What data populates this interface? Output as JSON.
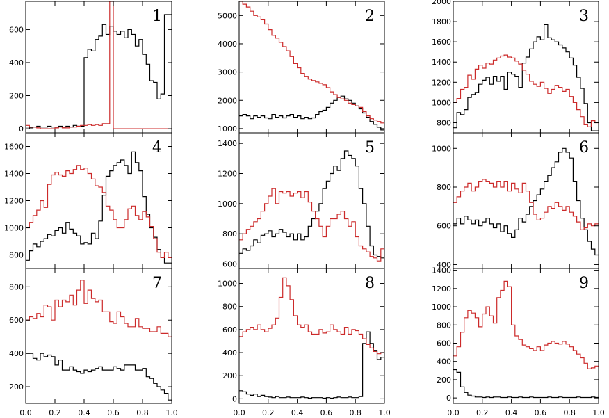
{
  "colors": {
    "series_a": "#000000",
    "series_b": "#cc2a2a"
  },
  "chart_data": {
    "type": "line",
    "layout": "3x3 grid of step histograms, shared x axis per column",
    "xlim": [
      0.0,
      1.0
    ],
    "x_tick_labels": [
      "0.0",
      "0.2",
      "0.4",
      "0.6",
      "0.8",
      "1.0"
    ],
    "x_ticks": [
      0.0,
      0.2,
      0.4,
      0.6,
      0.8,
      1.0
    ],
    "bin_edges": [
      0.0,
      0.025,
      0.05,
      0.075,
      0.1,
      0.125,
      0.15,
      0.175,
      0.2,
      0.225,
      0.25,
      0.275,
      0.3,
      0.325,
      0.35,
      0.375,
      0.4,
      0.425,
      0.45,
      0.475,
      0.5,
      0.525,
      0.55,
      0.575,
      0.6,
      0.625,
      0.65,
      0.675,
      0.7,
      0.725,
      0.75,
      0.775,
      0.8,
      0.825,
      0.85,
      0.875,
      0.9,
      0.925,
      0.95,
      0.975,
      1.0
    ],
    "panels": [
      {
        "label": "1",
        "ylim": [
          -25,
          770
        ],
        "yticks": [
          0,
          200,
          400,
          600
        ],
        "y_tick_labels": [
          "0",
          "200",
          "400",
          "600"
        ],
        "series": [
          {
            "color": "#000000",
            "values": [
              10,
              5,
              10,
              15,
              10,
              10,
              15,
              10,
              10,
              15,
              10,
              15,
              10,
              20,
              15,
              15,
              430,
              480,
              470,
              540,
              560,
              630,
              570,
              620,
              590,
              570,
              590,
              550,
              600,
              570,
              500,
              540,
              450,
              390,
              290,
              280,
              180,
              210,
              690,
              690
            ]
          },
          {
            "color": "#cc2a2a",
            "values": [
              20,
              10,
              10,
              5,
              0,
              0,
              0,
              0,
              5,
              10,
              5,
              5,
              10,
              10,
              15,
              20,
              20,
              25,
              20,
              25,
              20,
              30,
              30,
              770,
              0,
              0,
              0,
              0,
              0,
              0,
              0,
              0,
              0,
              0,
              0,
              0,
              0,
              0,
              0,
              0
            ]
          }
        ]
      },
      {
        "label": "4",
        "ylim": [
          700,
          1700
        ],
        "yticks": [
          800,
          1000,
          1200,
          1400,
          1600
        ],
        "y_tick_labels": [
          "800",
          "1000",
          "1200",
          "1400",
          "1600"
        ],
        "series": [
          {
            "color": "#000000",
            "values": [
              760,
              830,
              880,
              860,
              900,
              920,
              950,
              940,
              980,
              1000,
              960,
              1040,
              990,
              960,
              940,
              880,
              890,
              880,
              960,
              920,
              1050,
              1240,
              1380,
              1420,
              1460,
              1480,
              1500,
              1460,
              1400,
              1560,
              1480,
              1420,
              1230,
              1100,
              1000,
              930,
              840,
              780,
              740,
              740
            ]
          },
          {
            "color": "#cc2a2a",
            "values": [
              1000,
              1040,
              1090,
              1130,
              1200,
              1150,
              1320,
              1390,
              1410,
              1390,
              1380,
              1420,
              1400,
              1430,
              1460,
              1430,
              1440,
              1400,
              1360,
              1310,
              1300,
              1260,
              1160,
              1130,
              1060,
              1000,
              1000,
              1060,
              1140,
              1160,
              1090,
              1060,
              1120,
              1080,
              1010,
              920,
              820,
              780,
              820,
              780
            ]
          }
        ]
      },
      {
        "label": "7",
        "ylim": [
          100,
          910
        ],
        "yticks": [
          200,
          400,
          600,
          800
        ],
        "y_tick_labels": [
          "200",
          "400",
          "600",
          "800"
        ],
        "series": [
          {
            "color": "#000000",
            "values": [
              400,
              400,
              370,
              360,
              400,
              380,
              390,
              380,
              330,
              360,
              300,
              300,
              320,
              300,
              290,
              280,
              300,
              290,
              300,
              310,
              320,
              300,
              300,
              300,
              320,
              310,
              300,
              330,
              330,
              330,
              300,
              300,
              310,
              260,
              250,
              220,
              200,
              180,
              160,
              120
            ]
          },
          {
            "color": "#cc2a2a",
            "values": [
              600,
              620,
              610,
              640,
              620,
              690,
              680,
              600,
              720,
              680,
              720,
              710,
              750,
              690,
              780,
              840,
              700,
              780,
              730,
              710,
              720,
              650,
              650,
              590,
              580,
              650,
              620,
              580,
              560,
              560,
              610,
              560,
              550,
              550,
              530,
              530,
              560,
              520,
              520,
              500
            ]
          }
        ]
      },
      {
        "label": "2",
        "ylim": [
          850,
          5500
        ],
        "yticks": [
          1000,
          2000,
          3000,
          4000,
          5000
        ],
        "y_tick_labels": [
          "1000",
          "2000",
          "3000",
          "4000",
          "5000"
        ],
        "series": [
          {
            "color": "#000000",
            "values": [
              1450,
              1500,
              1450,
              1350,
              1450,
              1400,
              1450,
              1380,
              1350,
              1500,
              1400,
              1450,
              1380,
              1450,
              1500,
              1400,
              1450,
              1350,
              1400,
              1350,
              1380,
              1500,
              1600,
              1650,
              1750,
              1900,
              2000,
              2100,
              2150,
              2050,
              2000,
              1900,
              1800,
              1700,
              1550,
              1400,
              1250,
              1150,
              1050,
              950
            ]
          },
          {
            "color": "#cc2a2a",
            "values": [
              5500,
              5400,
              5300,
              5150,
              5000,
              4950,
              4850,
              4700,
              4500,
              4300,
              4200,
              4050,
              3900,
              3750,
              3550,
              3300,
              3150,
              2950,
              2850,
              2750,
              2700,
              2650,
              2600,
              2550,
              2450,
              2300,
              2200,
              2100,
              2050,
              2000,
              1900,
              1850,
              1800,
              1750,
              1600,
              1450,
              1350,
              1300,
              1250,
              1200
            ]
          }
        ]
      },
      {
        "label": "5",
        "ylim": [
          570,
          1470
        ],
        "yticks": [
          600,
          800,
          1000,
          1200,
          1400
        ],
        "y_tick_labels": [
          "600",
          "800",
          "1000",
          "1200",
          "1400"
        ],
        "series": [
          {
            "color": "#000000",
            "values": [
              670,
              700,
              690,
              720,
              760,
              740,
              790,
              800,
              820,
              780,
              800,
              830,
              810,
              780,
              800,
              760,
              800,
              760,
              780,
              850,
              900,
              950,
              1000,
              1100,
              1150,
              1200,
              1250,
              1220,
              1300,
              1350,
              1320,
              1300,
              1250,
              1100,
              1000,
              850,
              720,
              660,
              650,
              640
            ]
          },
          {
            "color": "#cc2a2a",
            "values": [
              760,
              800,
              830,
              850,
              880,
              900,
              950,
              1000,
              1050,
              1100,
              1000,
              1080,
              1070,
              1080,
              1050,
              1070,
              1080,
              1040,
              1080,
              1010,
              950,
              900,
              850,
              780,
              850,
              900,
              900,
              930,
              950,
              900,
              850,
              880,
              780,
              720,
              700,
              680,
              650,
              640,
              620,
              700
            ]
          }
        ]
      },
      {
        "label": "8",
        "ylim": [
          -40,
          1130
        ],
        "yticks": [
          0,
          200,
          400,
          600,
          800,
          1000
        ],
        "y_tick_labels": [
          "0",
          "200",
          "400",
          "600",
          "800",
          "1000"
        ],
        "series": [
          {
            "color": "#000000",
            "values": [
              70,
              60,
              40,
              30,
              40,
              20,
              30,
              20,
              15,
              10,
              20,
              10,
              10,
              15,
              10,
              10,
              10,
              15,
              10,
              5,
              10,
              10,
              10,
              5,
              10,
              5,
              10,
              15,
              10,
              10,
              15,
              10,
              10,
              20,
              480,
              580,
              480,
              420,
              340,
              360
            ]
          },
          {
            "color": "#cc2a2a",
            "values": [
              540,
              580,
              600,
              620,
              600,
              640,
              600,
              580,
              610,
              640,
              700,
              880,
              1050,
              980,
              860,
              720,
              640,
              620,
              640,
              580,
              560,
              560,
              600,
              570,
              580,
              640,
              600,
              580,
              560,
              620,
              560,
              600,
              590,
              560,
              520,
              470,
              440,
              410,
              390,
              400
            ]
          }
        ]
      },
      {
        "label": "3",
        "ylim": [
          700,
          2000
        ],
        "yticks": [
          800,
          1000,
          1200,
          1400,
          1600,
          1800,
          2000
        ],
        "y_tick_labels": [
          "800",
          "1000",
          "1200",
          "1400",
          "1600",
          "1800",
          "2000"
        ],
        "series": [
          {
            "color": "#000000",
            "values": [
              750,
              900,
              880,
              930,
              1050,
              1080,
              1100,
              1180,
              1220,
              1250,
              1180,
              1260,
              1210,
              1260,
              1130,
              1300,
              1280,
              1260,
              1150,
              1390,
              1450,
              1530,
              1600,
              1650,
              1620,
              1770,
              1640,
              1620,
              1600,
              1570,
              1540,
              1500,
              1440,
              1370,
              1250,
              1140,
              990,
              800,
              720,
              720
            ]
          },
          {
            "color": "#cc2a2a",
            "values": [
              1000,
              1040,
              1130,
              1150,
              1270,
              1230,
              1330,
              1370,
              1340,
              1390,
              1380,
              1420,
              1440,
              1460,
              1470,
              1450,
              1440,
              1410,
              1380,
              1320,
              1280,
              1210,
              1180,
              1160,
              1200,
              1140,
              1090,
              1130,
              1170,
              1150,
              1110,
              1130,
              1060,
              1000,
              930,
              860,
              780,
              760,
              820,
              800
            ]
          }
        ]
      },
      {
        "label": "6",
        "ylim": [
          380,
          1080
        ],
        "yticks": [
          400,
          600,
          800,
          1000
        ],
        "y_tick_labels": [
          "400",
          "600",
          "800",
          "1000"
        ],
        "series": [
          {
            "color": "#000000",
            "values": [
              610,
              640,
              610,
              650,
              630,
              610,
              630,
              600,
              620,
              640,
              610,
              590,
              610,
              570,
              600,
              560,
              540,
              580,
              640,
              620,
              660,
              700,
              730,
              760,
              790,
              830,
              860,
              900,
              930,
              980,
              1000,
              980,
              950,
              830,
              730,
              640,
              580,
              520,
              480,
              450
            ]
          },
          {
            "color": "#cc2a2a",
            "values": [
              720,
              750,
              780,
              800,
              820,
              780,
              800,
              830,
              840,
              830,
              820,
              800,
              830,
              800,
              830,
              780,
              820,
              790,
              770,
              820,
              780,
              720,
              660,
              630,
              640,
              670,
              700,
              690,
              720,
              700,
              680,
              700,
              670,
              650,
              620,
              580,
              590,
              610,
              600,
              610
            ]
          }
        ]
      },
      {
        "label": "9",
        "ylim": [
          -60,
          1420
        ],
        "yticks": [
          0,
          200,
          400,
          600,
          800,
          1000,
          1200,
          1400
        ],
        "y_tick_labels": [
          "0",
          "200",
          "400",
          "600",
          "800",
          "1000",
          "1200",
          "1400"
        ],
        "series": [
          {
            "color": "#000000",
            "values": [
              310,
              280,
              120,
              60,
              30,
              20,
              10,
              10,
              5,
              10,
              5,
              10,
              10,
              5,
              5,
              10,
              5,
              5,
              10,
              5,
              5,
              10,
              5,
              5,
              5,
              5,
              10,
              5,
              5,
              10,
              5,
              5,
              5,
              5,
              10,
              5,
              5,
              5,
              10,
              5
            ]
          },
          {
            "color": "#cc2a2a",
            "values": [
              460,
              560,
              720,
              880,
              960,
              930,
              880,
              780,
              920,
              1000,
              900,
              820,
              1100,
              1180,
              1280,
              1220,
              800,
              680,
              640,
              580,
              560,
              540,
              520,
              560,
              520,
              580,
              600,
              620,
              600,
              590,
              620,
              590,
              560,
              520,
              480,
              440,
              380,
              320,
              330,
              350
            ]
          }
        ]
      }
    ]
  }
}
